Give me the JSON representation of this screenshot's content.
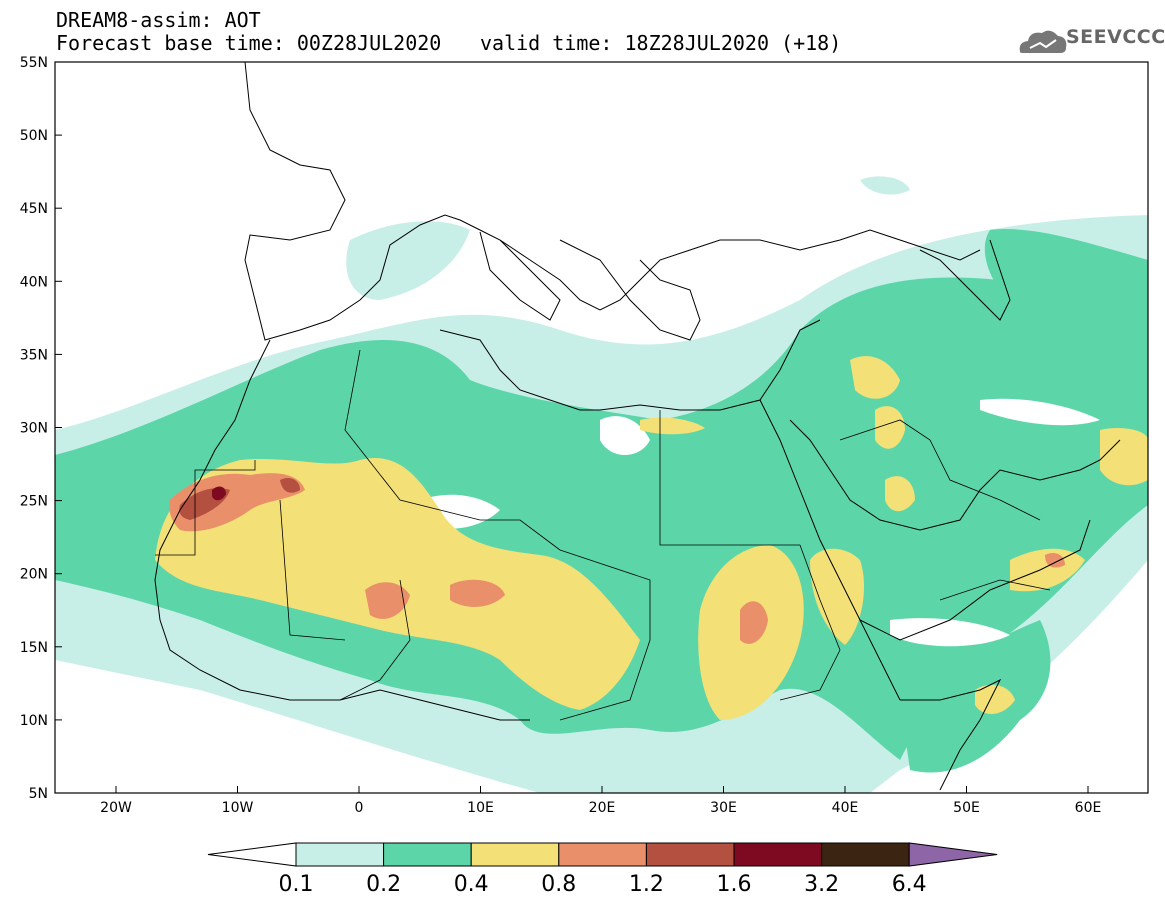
{
  "header": {
    "title_line1": "DREAM8-assim: AOT",
    "forecast_base": "Forecast base time: 00Z28JUL2020",
    "valid_time": "valid time: 18Z28JUL2020 (+18)"
  },
  "logo": {
    "text": "SEEVCCC",
    "icon": "cloud-icon"
  },
  "map": {
    "lon_labels": [
      "20W",
      "10W",
      "0",
      "10E",
      "20E",
      "30E",
      "40E",
      "50E",
      "60E"
    ],
    "lat_labels": [
      "55N",
      "50N",
      "45N",
      "40N",
      "35N",
      "30N",
      "25N",
      "20N",
      "15N",
      "10N",
      "5N"
    ]
  },
  "colorbar": {
    "labels": [
      "0.1",
      "0.2",
      "0.4",
      "0.8",
      "1.2",
      "1.6",
      "3.2",
      "6.4"
    ],
    "colors": [
      "#ffffff",
      "#c8efe7",
      "#5cd6a9",
      "#f3e077",
      "#e9906a",
      "#b4503f",
      "#7e0a22",
      "#3b2412",
      "#8e66a8"
    ]
  }
}
